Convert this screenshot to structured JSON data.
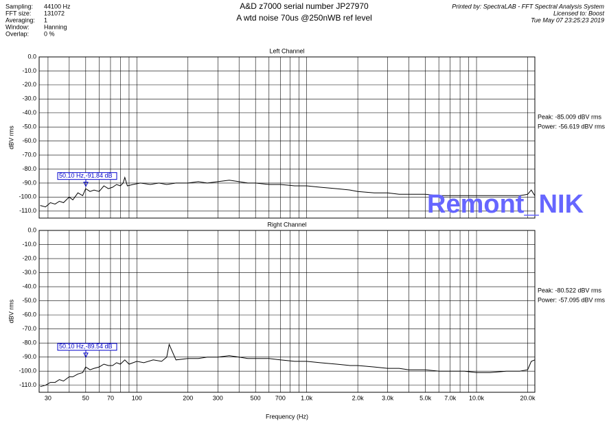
{
  "header": {
    "fields": [
      [
        "Sampling:",
        "44100 Hz"
      ],
      [
        "FFT size:",
        "131072"
      ],
      [
        "Averaging:",
        "1"
      ],
      [
        "Window:",
        "Hanning"
      ],
      [
        "Overlap:",
        "0 %"
      ]
    ],
    "title": "A&D z7000  serial number JP27970",
    "subtitle": "A wtd noise 70us  @250nWB ref level",
    "printed": [
      "Printed by: SpectraLAB - FFT Spectral Analysis System",
      "Licensed to: Boost",
      "Tue May 07 23:25:23 2019"
    ],
    "watermark": "Remont_NIK"
  },
  "chart_data": [
    {
      "type": "line",
      "title": "Left Channel",
      "ylabel": "dBV rms",
      "color": "#000000",
      "log_x": true,
      "grid": true,
      "x": [
        27,
        29,
        31,
        33,
        35,
        37,
        40,
        42,
        45,
        48,
        50,
        53,
        56,
        60,
        64,
        68,
        72,
        76,
        80,
        83,
        85,
        88,
        95,
        105,
        120,
        135,
        150,
        170,
        200,
        230,
        260,
        300,
        350,
        400,
        450,
        500,
        600,
        700,
        850,
        1000,
        1200,
        1500,
        1800,
        2000,
        2500,
        3000,
        3500,
        4000,
        5000,
        6000,
        7000,
        8500,
        10000,
        12000,
        15000,
        18000,
        20000,
        21000,
        22000
      ],
      "values": [
        -106,
        -107,
        -104,
        -105,
        -103,
        -104,
        -100,
        -102,
        -97,
        -99,
        -94,
        -96,
        -95,
        -96,
        -92,
        -94,
        -93,
        -91,
        -92,
        -90,
        -86,
        -92,
        -91,
        -90,
        -91,
        -90,
        -91,
        -90,
        -90,
        -89,
        -90,
        -89,
        -88,
        -89,
        -90,
        -90,
        -91,
        -91,
        -92,
        -92,
        -93,
        -94,
        -95,
        -96,
        -97,
        -97,
        -98,
        -98,
        -98,
        -99,
        -99,
        -99,
        -99,
        -99,
        -99,
        -99,
        -98,
        -95,
        -99
      ],
      "xlim": [
        26.6,
        22050
      ],
      "ylim": [
        -115,
        0
      ],
      "xticks": [
        30,
        50,
        70,
        100,
        200,
        300,
        500,
        700,
        1000,
        2000,
        3000,
        5000,
        7000,
        10000,
        20000
      ],
      "xminor": [
        40,
        60,
        80,
        90,
        400,
        600,
        800,
        900,
        4000,
        6000,
        8000,
        9000
      ],
      "yticks": [
        {
          "value": 0,
          "label": "0.0"
        },
        {
          "value": -10,
          "label": "-10.0"
        },
        {
          "value": -20,
          "label": "-20.0"
        },
        {
          "value": -30,
          "label": "-30.0"
        },
        {
          "value": -40,
          "label": "-40.0"
        },
        {
          "value": -50,
          "label": "-50.0"
        },
        {
          "value": -60,
          "label": "-60.0"
        },
        {
          "value": -70,
          "label": "-70.0"
        },
        {
          "value": -80,
          "label": "-80.0"
        },
        {
          "value": -90,
          "label": "-90.0"
        },
        {
          "value": -100,
          "label": "-100.0"
        },
        {
          "value": -110,
          "label": "-110.0"
        }
      ],
      "stats": [
        "Peak: -85.009 dBV rms",
        "Power: -56.619 dBV rms"
      ],
      "marker": {
        "x": 50.1,
        "y": -91.84,
        "label": "50.10 Hz,-91.84 dB"
      }
    },
    {
      "type": "line",
      "title": "Right Channel",
      "ylabel": "dBV rms",
      "xlabel": "Frequency (Hz)",
      "color": "#000000",
      "log_x": true,
      "grid": true,
      "x": [
        27,
        29,
        31,
        33,
        35,
        37,
        40,
        42,
        45,
        48,
        50,
        53,
        56,
        60,
        64,
        68,
        72,
        76,
        80,
        85,
        90,
        100,
        110,
        125,
        140,
        150,
        155,
        170,
        200,
        230,
        260,
        300,
        350,
        400,
        450,
        500,
        600,
        700,
        850,
        1000,
        1200,
        1500,
        1800,
        2000,
        2500,
        3000,
        3500,
        4000,
        5000,
        6000,
        7000,
        8500,
        10000,
        12000,
        15000,
        18000,
        20000,
        21000,
        22000
      ],
      "values": [
        -111,
        -110,
        -108,
        -108,
        -106,
        -107,
        -104,
        -104,
        -102,
        -101,
        -97,
        -99,
        -98,
        -97,
        -95,
        -96,
        -96,
        -94,
        -95,
        -92,
        -95,
        -93,
        -94,
        -92,
        -93,
        -90,
        -81,
        -92,
        -91,
        -91,
        -90,
        -90,
        -89,
        -90,
        -91,
        -91,
        -91,
        -92,
        -93,
        -93,
        -94,
        -95,
        -96,
        -96,
        -97,
        -98,
        -98,
        -99,
        -99,
        -100,
        -100,
        -100,
        -101,
        -101,
        -100,
        -100,
        -99,
        -93,
        -92
      ],
      "xlim": [
        26.6,
        22050
      ],
      "ylim": [
        -115,
        0
      ],
      "xticks": [
        30,
        50,
        70,
        100,
        200,
        300,
        500,
        700,
        {
          "value": 1000,
          "label": "1.0k"
        },
        {
          "value": 2000,
          "label": "2.0k"
        },
        {
          "value": 3000,
          "label": "3.0k"
        },
        {
          "value": 5000,
          "label": "5.0k"
        },
        {
          "value": 7000,
          "label": "7.0k"
        },
        {
          "value": 10000,
          "label": "10.0k"
        },
        {
          "value": 20000,
          "label": "20.0k"
        }
      ],
      "xminor": [
        40,
        60,
        80,
        90,
        400,
        600,
        800,
        900,
        4000,
        6000,
        8000,
        9000
      ],
      "yticks": [
        {
          "value": 0,
          "label": "0.0"
        },
        {
          "value": -10,
          "label": "-10.0"
        },
        {
          "value": -20,
          "label": "-20.0"
        },
        {
          "value": -30,
          "label": "-30.0"
        },
        {
          "value": -40,
          "label": "-40.0"
        },
        {
          "value": -50,
          "label": "-50.0"
        },
        {
          "value": -60,
          "label": "-60.0"
        },
        {
          "value": -70,
          "label": "-70.0"
        },
        {
          "value": -80,
          "label": "-80.0"
        },
        {
          "value": -90,
          "label": "-90.0"
        },
        {
          "value": -100,
          "label": "-100.0"
        },
        {
          "value": -110,
          "label": "-110.0"
        }
      ],
      "stats": [
        "Peak: -80.522 dBV rms",
        "Power: -57.095 dBV rms"
      ],
      "marker": {
        "x": 50.1,
        "y": -89.54,
        "label": "50.10 Hz,-89.54 dB"
      }
    }
  ]
}
